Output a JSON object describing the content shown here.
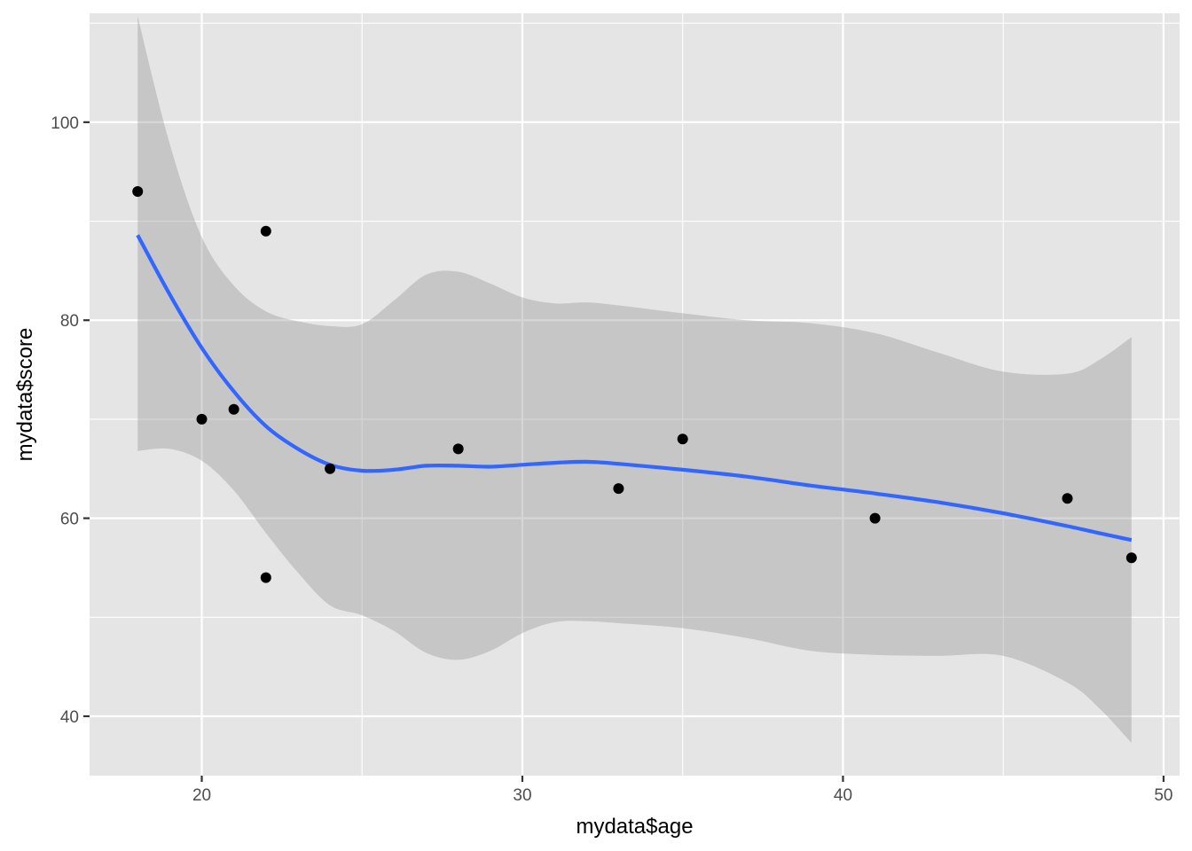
{
  "chart_data": {
    "type": "scatter",
    "xlabel": "mydata$age",
    "ylabel": "mydata$score",
    "xlim": [
      16.5,
      50.5
    ],
    "ylim": [
      34,
      111
    ],
    "x_ticks": [
      20,
      30,
      40,
      50
    ],
    "y_ticks": [
      40,
      60,
      80,
      100
    ],
    "x_tick_labels": [
      "20",
      "30",
      "40",
      "50"
    ],
    "y_tick_labels": [
      "40",
      "60",
      "80",
      "100"
    ],
    "grid": true,
    "colors": {
      "panel": "#e5e5e5",
      "grid": "#ffffff",
      "points": "#000000",
      "smooth_line": "#3366ff",
      "ribbon": "#bebebe"
    },
    "points": [
      {
        "x": 18,
        "y": 93
      },
      {
        "x": 20,
        "y": 70
      },
      {
        "x": 21,
        "y": 71
      },
      {
        "x": 22,
        "y": 89
      },
      {
        "x": 22,
        "y": 54
      },
      {
        "x": 24,
        "y": 65
      },
      {
        "x": 28,
        "y": 67
      },
      {
        "x": 33,
        "y": 63
      },
      {
        "x": 35,
        "y": 68
      },
      {
        "x": 41,
        "y": 60
      },
      {
        "x": 47,
        "y": 62
      },
      {
        "x": 49,
        "y": 56
      }
    ],
    "smooth": {
      "method": "loess",
      "fit": [
        {
          "x": 18,
          "y": 88.6,
          "lower": 66.8,
          "upper": 110.7
        },
        {
          "x": 19,
          "y": 82.6,
          "lower": 67.0,
          "upper": 97.8
        },
        {
          "x": 20,
          "y": 77.2,
          "lower": 65.8,
          "upper": 88.4
        },
        {
          "x": 21,
          "y": 72.8,
          "lower": 62.8,
          "upper": 83.5
        },
        {
          "x": 22,
          "y": 69.3,
          "lower": 58.5,
          "upper": 80.9
        },
        {
          "x": 23,
          "y": 67.0,
          "lower": 54.5,
          "upper": 79.9
        },
        {
          "x": 24,
          "y": 65.4,
          "lower": 51.2,
          "upper": 79.4
        },
        {
          "x": 25,
          "y": 64.8,
          "lower": 50.2,
          "upper": 79.6
        },
        {
          "x": 26,
          "y": 64.9,
          "lower": 48.6,
          "upper": 82.0
        },
        {
          "x": 27,
          "y": 65.3,
          "lower": 46.4,
          "upper": 84.6
        },
        {
          "x": 28,
          "y": 65.3,
          "lower": 45.7,
          "upper": 84.9
        },
        {
          "x": 29,
          "y": 65.2,
          "lower": 46.6,
          "upper": 83.7
        },
        {
          "x": 30,
          "y": 65.4,
          "lower": 48.4,
          "upper": 82.3
        },
        {
          "x": 31,
          "y": 65.6,
          "lower": 49.5,
          "upper": 81.7
        },
        {
          "x": 32,
          "y": 65.7,
          "lower": 49.6,
          "upper": 81.8
        },
        {
          "x": 33,
          "y": 65.5,
          "lower": 49.4,
          "upper": 81.5
        },
        {
          "x": 35,
          "y": 64.9,
          "lower": 48.9,
          "upper": 80.7
        },
        {
          "x": 37,
          "y": 64.2,
          "lower": 47.9,
          "upper": 80.0
        },
        {
          "x": 39,
          "y": 63.3,
          "lower": 46.6,
          "upper": 79.7
        },
        {
          "x": 41,
          "y": 62.5,
          "lower": 46.2,
          "upper": 78.7
        },
        {
          "x": 43,
          "y": 61.6,
          "lower": 46.1,
          "upper": 76.7
        },
        {
          "x": 45,
          "y": 60.5,
          "lower": 46.1,
          "upper": 74.8
        },
        {
          "x": 47,
          "y": 59.2,
          "lower": 43.4,
          "upper": 74.6
        },
        {
          "x": 48,
          "y": 58.5,
          "lower": 40.8,
          "upper": 76.0
        },
        {
          "x": 49,
          "y": 57.8,
          "lower": 37.3,
          "upper": 78.3
        }
      ]
    }
  }
}
